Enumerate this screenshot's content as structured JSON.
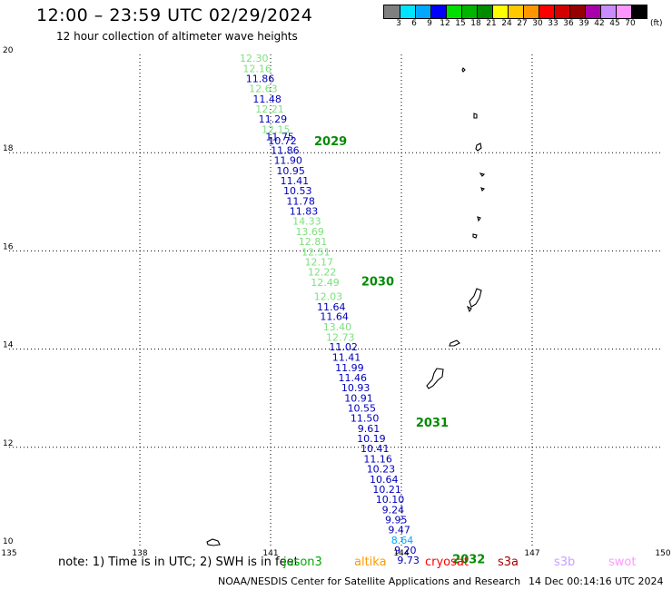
{
  "header": {
    "title": "12:00 – 23:59 UTC 02/29/2024",
    "subtitle": "12 hour collection of altimeter wave heights"
  },
  "legend": {
    "unit": "(ft)",
    "bins": [
      {
        "label": "3",
        "color": "#7f7f7f"
      },
      {
        "label": "6",
        "color": "#00e5ff"
      },
      {
        "label": "9",
        "color": "#00a8ff"
      },
      {
        "label": "12",
        "color": "#0000ff"
      },
      {
        "label": "15",
        "color": "#00dd00"
      },
      {
        "label": "18",
        "color": "#00b400"
      },
      {
        "label": "21",
        "color": "#008c00"
      },
      {
        "label": "24",
        "color": "#ffff00"
      },
      {
        "label": "27",
        "color": "#ffc800"
      },
      {
        "label": "30",
        "color": "#ff9600"
      },
      {
        "label": "33",
        "color": "#ff0000"
      },
      {
        "label": "36",
        "color": "#d20000"
      },
      {
        "label": "39",
        "color": "#960000"
      },
      {
        "label": "42",
        "color": "#aa00aa"
      },
      {
        "label": "45",
        "color": "#c88cff"
      },
      {
        "label": "70",
        "color": "#ff96ff"
      },
      {
        "label": "",
        "color": "#000000"
      }
    ]
  },
  "chart_data": {
    "type": "map",
    "lon_range": [
      135,
      150
    ],
    "lat_range": [
      10,
      20
    ],
    "lon_ticks": [
      "135",
      "138",
      "141",
      "144",
      "147",
      "150"
    ],
    "lat_ticks": [
      "10",
      "12",
      "14",
      "16",
      "18",
      "20"
    ],
    "grid": true,
    "colors": {
      "lightgreen": "#7ee07e",
      "blue": "#0000bb",
      "cyan": "#00a8ff",
      "darkgreen": "#008c00"
    },
    "observations": [
      {
        "lon": 140.62,
        "lat": 19.85,
        "value": "12.30",
        "color": "lightgreen"
      },
      {
        "lon": 140.69,
        "lat": 19.64,
        "value": "12.16",
        "color": "lightgreen"
      },
      {
        "lon": 140.76,
        "lat": 19.44,
        "value": "11.86",
        "color": "blue"
      },
      {
        "lon": 140.83,
        "lat": 19.23,
        "value": "12.63",
        "color": "lightgreen"
      },
      {
        "lon": 140.92,
        "lat": 19.02,
        "value": "11.48",
        "color": "blue"
      },
      {
        "lon": 140.98,
        "lat": 18.82,
        "value": "12.21",
        "color": "lightgreen"
      },
      {
        "lon": 141.05,
        "lat": 18.61,
        "value": "11.29",
        "color": "blue"
      },
      {
        "lon": 141.12,
        "lat": 18.4,
        "value": "12.15",
        "color": "lightgreen"
      },
      {
        "lon": 141.21,
        "lat": 18.25,
        "value": "11.75",
        "color": "blue"
      },
      {
        "lon": 141.27,
        "lat": 18.17,
        "value": "10.72",
        "color": "blue"
      },
      {
        "lon": 141.33,
        "lat": 17.98,
        "value": "11.86",
        "color": "blue"
      },
      {
        "lon": 141.4,
        "lat": 17.77,
        "value": "11.90",
        "color": "blue"
      },
      {
        "lon": 141.46,
        "lat": 17.56,
        "value": "10.95",
        "color": "blue"
      },
      {
        "lon": 141.55,
        "lat": 17.36,
        "value": "11.41",
        "color": "blue"
      },
      {
        "lon": 141.62,
        "lat": 17.15,
        "value": "10.53",
        "color": "blue"
      },
      {
        "lon": 141.69,
        "lat": 16.94,
        "value": "11.78",
        "color": "blue"
      },
      {
        "lon": 141.76,
        "lat": 16.74,
        "value": "11.83",
        "color": "blue"
      },
      {
        "lon": 141.83,
        "lat": 16.53,
        "value": "14.33",
        "color": "lightgreen"
      },
      {
        "lon": 141.9,
        "lat": 16.32,
        "value": "13.69",
        "color": "lightgreen"
      },
      {
        "lon": 141.97,
        "lat": 16.12,
        "value": "12.81",
        "color": "lightgreen"
      },
      {
        "lon": 142.04,
        "lat": 15.91,
        "value": "12.51",
        "color": "lightgreen"
      },
      {
        "lon": 142.11,
        "lat": 15.7,
        "value": "12.17",
        "color": "lightgreen"
      },
      {
        "lon": 142.18,
        "lat": 15.5,
        "value": "12.22",
        "color": "lightgreen"
      },
      {
        "lon": 142.25,
        "lat": 15.29,
        "value": "12.49",
        "color": "lightgreen"
      },
      {
        "lon": 142.32,
        "lat": 15.0,
        "value": "12.03",
        "color": "lightgreen"
      },
      {
        "lon": 142.39,
        "lat": 14.79,
        "value": "11.64",
        "color": "blue"
      },
      {
        "lon": 142.46,
        "lat": 14.59,
        "value": "11.64",
        "color": "blue"
      },
      {
        "lon": 142.53,
        "lat": 14.38,
        "value": "13.40",
        "color": "lightgreen"
      },
      {
        "lon": 142.6,
        "lat": 14.17,
        "value": "12.73",
        "color": "lightgreen"
      },
      {
        "lon": 142.67,
        "lat": 13.97,
        "value": "11.02",
        "color": "blue"
      },
      {
        "lon": 142.74,
        "lat": 13.76,
        "value": "11.41",
        "color": "blue"
      },
      {
        "lon": 142.81,
        "lat": 13.55,
        "value": "11.99",
        "color": "blue"
      },
      {
        "lon": 142.88,
        "lat": 13.35,
        "value": "11.46",
        "color": "blue"
      },
      {
        "lon": 142.95,
        "lat": 13.14,
        "value": "10.93",
        "color": "blue"
      },
      {
        "lon": 143.02,
        "lat": 12.93,
        "value": "10.91",
        "color": "blue"
      },
      {
        "lon": 143.09,
        "lat": 12.73,
        "value": "10.55",
        "color": "blue"
      },
      {
        "lon": 143.16,
        "lat": 12.52,
        "value": "11.50",
        "color": "blue"
      },
      {
        "lon": 143.25,
        "lat": 12.31,
        "value": "9.61",
        "color": "blue"
      },
      {
        "lon": 143.31,
        "lat": 12.11,
        "value": "10.19",
        "color": "blue"
      },
      {
        "lon": 143.39,
        "lat": 11.9,
        "value": "10.41",
        "color": "blue"
      },
      {
        "lon": 143.46,
        "lat": 11.69,
        "value": "11.16",
        "color": "blue"
      },
      {
        "lon": 143.53,
        "lat": 11.49,
        "value": "10.23",
        "color": "blue"
      },
      {
        "lon": 143.6,
        "lat": 11.28,
        "value": "10.64",
        "color": "blue"
      },
      {
        "lon": 143.67,
        "lat": 11.07,
        "value": "10.21",
        "color": "blue"
      },
      {
        "lon": 143.74,
        "lat": 10.87,
        "value": "10.10",
        "color": "blue"
      },
      {
        "lon": 143.81,
        "lat": 10.66,
        "value": "9.24",
        "color": "blue"
      },
      {
        "lon": 143.88,
        "lat": 10.45,
        "value": "9.95",
        "color": "blue"
      },
      {
        "lon": 143.95,
        "lat": 10.25,
        "value": "9.47",
        "color": "blue"
      },
      {
        "lon": 144.02,
        "lat": 10.04,
        "value": "8.64",
        "color": "cyan"
      },
      {
        "lon": 144.09,
        "lat": 9.83,
        "value": "9.20",
        "color": "blue"
      },
      {
        "lon": 144.16,
        "lat": 9.63,
        "value": "9.73",
        "color": "blue"
      }
    ],
    "hour_markers": [
      {
        "lon": 142.0,
        "lat": 18.15,
        "label": "2029",
        "color": "darkgreen"
      },
      {
        "lon": 143.08,
        "lat": 15.3,
        "label": "2030",
        "color": "darkgreen"
      },
      {
        "lon": 144.33,
        "lat": 12.42,
        "label": "2031",
        "color": "darkgreen"
      },
      {
        "lon": 145.17,
        "lat": 9.64,
        "label": "2032",
        "color": "darkgreen"
      }
    ]
  },
  "footer": {
    "note": "note: 1) Time is in UTC; 2) SWH is in feet",
    "satellites": [
      {
        "name": "jason3",
        "color": "#00aa00"
      },
      {
        "name": "altika",
        "color": "#ff9900"
      },
      {
        "name": "cryosat",
        "color": "#ff0000"
      },
      {
        "name": "s3a",
        "color": "#aa0000"
      },
      {
        "name": "s3b",
        "color": "#c8a0ff"
      },
      {
        "name": "swot",
        "color": "#ff99ff"
      }
    ],
    "credit": "NOAA/NESDIS Center for Satellite Applications and Research",
    "stamp": "14 Dec 00:14:16 UTC 2024"
  }
}
